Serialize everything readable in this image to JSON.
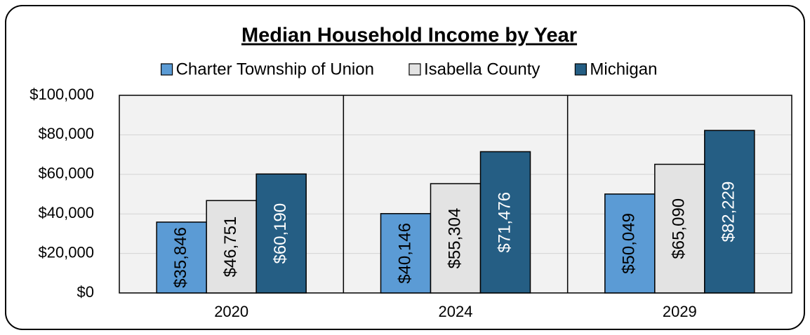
{
  "chart_data": {
    "type": "bar",
    "title": "Median Household Income by Year",
    "categories": [
      "2020",
      "2024",
      "2029"
    ],
    "series": [
      {
        "name": "Charter Township of Union",
        "color": "#5b9bd5",
        "values": [
          35846,
          40146,
          50049
        ],
        "value_labels": [
          "$35,846",
          "$40,146",
          "$50,049"
        ]
      },
      {
        "name": "Isabella County",
        "color": "#e3e3e3",
        "values": [
          46751,
          55304,
          65090
        ],
        "value_labels": [
          "$46,751",
          "$55,304",
          "$65,090"
        ]
      },
      {
        "name": "Michigan",
        "color": "#255e84",
        "values": [
          60190,
          71476,
          82229
        ],
        "value_labels": [
          "$60,190",
          "$71,476",
          "$82,229"
        ]
      }
    ],
    "ylim": [
      0,
      100000
    ],
    "yticks": [
      {
        "value": 0,
        "label": "$0"
      },
      {
        "value": 20000,
        "label": "$20,000"
      },
      {
        "value": 40000,
        "label": "$40,000"
      },
      {
        "value": 60000,
        "label": "$60,000"
      },
      {
        "value": 80000,
        "label": "$80,000"
      },
      {
        "value": 100000,
        "label": "$100,000"
      }
    ],
    "grid": true,
    "legend": "top"
  }
}
